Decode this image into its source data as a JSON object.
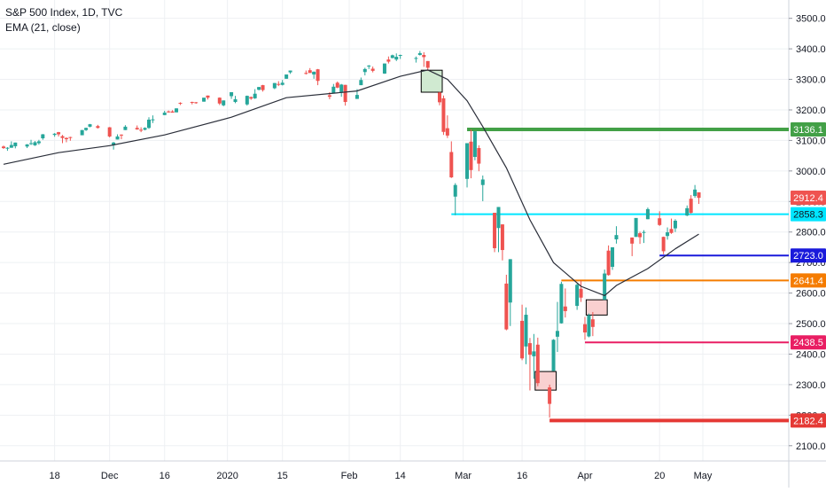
{
  "header": {
    "title": "S&P 500 Index, 1D, TVC",
    "indicator": "EMA (21, close)"
  },
  "colors": {
    "up": "#26a69a",
    "down": "#ef5350",
    "ema": "#2a2e39",
    "grid": "#eef0f3",
    "axis_text": "#131722"
  },
  "chart_data": {
    "type": "candlestick",
    "title": "S&P 500 Index, 1D, TVC",
    "indicator": "EMA (21, close)",
    "ylim": [
      2050,
      3560
    ],
    "y_ticks": [
      2100,
      2200,
      2300,
      2400,
      2500,
      2600,
      2700,
      2800,
      2900,
      3000,
      3100,
      3200,
      3300,
      3400,
      3500
    ],
    "y_tick_labels": [
      "2100.0",
      "2200.0",
      "2300.0",
      "2400.0",
      "2500.0",
      "2600.0",
      "2700.0",
      "2800.0",
      "2900.0",
      "3000.0",
      "3100.0",
      "3200.0",
      "3300.0",
      "3400.0",
      "3500.0"
    ],
    "x_labels": [
      {
        "date": "2019-11-18",
        "label": "18"
      },
      {
        "date": "2019-12-02",
        "label": "Dec"
      },
      {
        "date": "2019-12-16",
        "label": "16"
      },
      {
        "date": "2020-01-01",
        "label": "2020"
      },
      {
        "date": "2020-01-15",
        "label": "15"
      },
      {
        "date": "2020-02-01",
        "label": "Feb"
      },
      {
        "date": "2020-02-14",
        "label": "14"
      },
      {
        "date": "2020-03-01",
        "label": "Mar"
      },
      {
        "date": "2020-03-16",
        "label": "16"
      },
      {
        "date": "2020-04-01",
        "label": "Apr"
      },
      {
        "date": "2020-04-20",
        "label": "20"
      },
      {
        "date": "2020-05-01",
        "label": "May"
      }
    ],
    "x_start": "2019-11-05",
    "x_end": "2020-05-08",
    "candles": [
      [
        "2019-11-05",
        3080,
        3083,
        3072,
        3075
      ],
      [
        "2019-11-06",
        3075,
        3078,
        3066,
        3076
      ],
      [
        "2019-11-07",
        3076,
        3097,
        3076,
        3085
      ],
      [
        "2019-11-08",
        3081,
        3093,
        3074,
        3093
      ],
      [
        "2019-11-11",
        3080,
        3088,
        3075,
        3087
      ],
      [
        "2019-11-12",
        3090,
        3102,
        3085,
        3091
      ],
      [
        "2019-11-13",
        3084,
        3098,
        3082,
        3094
      ],
      [
        "2019-11-14",
        3091,
        3102,
        3086,
        3097
      ],
      [
        "2019-11-15",
        3107,
        3121,
        3102,
        3120
      ],
      [
        "2019-11-18",
        3118,
        3124,
        3112,
        3122
      ],
      [
        "2019-11-19",
        3127,
        3128,
        3113,
        3120
      ],
      [
        "2019-11-20",
        3114,
        3118,
        3091,
        3108
      ],
      [
        "2019-11-21",
        3108,
        3110,
        3094,
        3104
      ],
      [
        "2019-11-22",
        3111,
        3112,
        3099,
        3110
      ],
      [
        "2019-11-25",
        3117,
        3134,
        3117,
        3134
      ],
      [
        "2019-11-26",
        3134,
        3142,
        3131,
        3141
      ],
      [
        "2019-11-27",
        3145,
        3154,
        3143,
        3153
      ],
      [
        "2019-11-29",
        3147,
        3151,
        3139,
        3141
      ],
      [
        "2019-12-02",
        3143,
        3144,
        3110,
        3113
      ],
      [
        "2019-12-03",
        3084,
        3095,
        3070,
        3093
      ],
      [
        "2019-12-04",
        3103,
        3120,
        3103,
        3113
      ],
      [
        "2019-12-05",
        3119,
        3120,
        3104,
        3117
      ],
      [
        "2019-12-06",
        3134,
        3150,
        3134,
        3145
      ],
      [
        "2019-12-09",
        3141,
        3149,
        3135,
        3136
      ],
      [
        "2019-12-10",
        3135,
        3143,
        3127,
        3132
      ],
      [
        "2019-12-11",
        3135,
        3143,
        3133,
        3141
      ],
      [
        "2019-12-12",
        3141,
        3176,
        3138,
        3168
      ],
      [
        "2019-12-13",
        3166,
        3182,
        3157,
        3169
      ],
      [
        "2019-12-16",
        3183,
        3197,
        3183,
        3191
      ],
      [
        "2019-12-17",
        3195,
        3198,
        3191,
        3192
      ],
      [
        "2019-12-18",
        3195,
        3199,
        3191,
        3191
      ],
      [
        "2019-12-19",
        3192,
        3205,
        3192,
        3205
      ],
      [
        "2019-12-20",
        3223,
        3225,
        3216,
        3221
      ],
      [
        "2019-12-23",
        3226,
        3227,
        3218,
        3224
      ],
      [
        "2019-12-24",
        3225,
        3226,
        3220,
        3223
      ],
      [
        "2019-12-26",
        3227,
        3240,
        3227,
        3240
      ],
      [
        "2019-12-27",
        3247,
        3247,
        3234,
        3240
      ],
      [
        "2019-12-30",
        3240,
        3241,
        3216,
        3221
      ],
      [
        "2019-12-31",
        3215,
        3231,
        3212,
        3231
      ],
      [
        "2020-01-02",
        3245,
        3258,
        3236,
        3258
      ],
      [
        "2020-01-03",
        3226,
        3246,
        3222,
        3235
      ],
      [
        "2020-01-06",
        3218,
        3247,
        3214,
        3246
      ],
      [
        "2020-01-07",
        3242,
        3244,
        3233,
        3237
      ],
      [
        "2020-01-08",
        3238,
        3268,
        3236,
        3253
      ],
      [
        "2020-01-09",
        3266,
        3275,
        3264,
        3275
      ],
      [
        "2020-01-10",
        3281,
        3282,
        3260,
        3265
      ],
      [
        "2020-01-13",
        3271,
        3288,
        3268,
        3288
      ],
      [
        "2020-01-14",
        3285,
        3294,
        3278,
        3283
      ],
      [
        "2020-01-15",
        3282,
        3298,
        3280,
        3289
      ],
      [
        "2020-01-16",
        3302,
        3316,
        3302,
        3316
      ],
      [
        "2020-01-17",
        3323,
        3329,
        3318,
        3329
      ],
      [
        "2020-01-21",
        3321,
        3329,
        3316,
        3320
      ],
      [
        "2020-01-22",
        3330,
        3337,
        3321,
        3321
      ],
      [
        "2020-01-23",
        3316,
        3326,
        3302,
        3325
      ],
      [
        "2020-01-24",
        3333,
        3334,
        3281,
        3295
      ],
      [
        "2020-01-27",
        3248,
        3258,
        3235,
        3243
      ],
      [
        "2020-01-28",
        3255,
        3285,
        3255,
        3276
      ],
      [
        "2020-01-29",
        3289,
        3293,
        3271,
        3273
      ],
      [
        "2020-01-30",
        3256,
        3285,
        3243,
        3283
      ],
      [
        "2020-01-31",
        3282,
        3282,
        3214,
        3226
      ],
      [
        "2020-02-03",
        3236,
        3268,
        3236,
        3249
      ],
      [
        "2020-02-04",
        3281,
        3306,
        3281,
        3298
      ],
      [
        "2020-02-05",
        3324,
        3338,
        3313,
        3334
      ],
      [
        "2020-02-06",
        3344,
        3347,
        3334,
        3345
      ],
      [
        "2020-02-07",
        3335,
        3342,
        3323,
        3328
      ],
      [
        "2020-02-10",
        3319,
        3352,
        3318,
        3352
      ],
      [
        "2020-02-11",
        3365,
        3375,
        3352,
        3358
      ],
      [
        "2020-02-12",
        3370,
        3381,
        3369,
        3379
      ],
      [
        "2020-02-13",
        3365,
        3385,
        3360,
        3374
      ],
      [
        "2020-02-14",
        3379,
        3381,
        3367,
        3380
      ],
      [
        "2020-02-18",
        3370,
        3375,
        3355,
        3370
      ],
      [
        "2020-02-19",
        3380,
        3393,
        3378,
        3386
      ],
      [
        "2020-02-20",
        3380,
        3389,
        3341,
        3373
      ],
      [
        "2020-02-21",
        3360,
        3360,
        3328,
        3338
      ],
      [
        "2020-02-24",
        3257,
        3259,
        3215,
        3225
      ],
      [
        "2020-02-25",
        3238,
        3247,
        3118,
        3128
      ],
      [
        "2020-02-26",
        3140,
        3182,
        3108,
        3116
      ],
      [
        "2020-02-27",
        3062,
        3097,
        2977,
        2979
      ],
      [
        "2020-02-28",
        2916,
        2960,
        2855,
        2954
      ],
      [
        "2020-03-02",
        2974,
        3091,
        2946,
        3091
      ],
      [
        "2020-03-03",
        3096,
        3136,
        2976,
        3003
      ],
      [
        "2020-03-04",
        3046,
        3131,
        3035,
        3130
      ],
      [
        "2020-03-05",
        3075,
        3084,
        2999,
        3024
      ],
      [
        "2020-03-06",
        2954,
        2985,
        2901,
        2972
      ],
      [
        "2020-03-09",
        2863,
        2863,
        2734,
        2747
      ],
      [
        "2020-03-10",
        2813,
        2882,
        2734,
        2882
      ],
      [
        "2020-03-11",
        2825,
        2825,
        2707,
        2741
      ],
      [
        "2020-03-12",
        2631,
        2660,
        2478,
        2481
      ],
      [
        "2020-03-13",
        2569,
        2711,
        2492,
        2711
      ],
      [
        "2020-03-16",
        2509,
        2562,
        2380,
        2386
      ],
      [
        "2020-03-17",
        2425,
        2553,
        2367,
        2529
      ],
      [
        "2020-03-18",
        2436,
        2453,
        2281,
        2398
      ],
      [
        "2020-03-19",
        2393,
        2466,
        2319,
        2409
      ],
      [
        "2020-03-20",
        2431,
        2454,
        2295,
        2305
      ],
      [
        "2020-03-23",
        2291,
        2300,
        2192,
        2237
      ],
      [
        "2020-03-24",
        2345,
        2449,
        2345,
        2447
      ],
      [
        "2020-03-25",
        2457,
        2571,
        2407,
        2476
      ],
      [
        "2020-03-26",
        2501,
        2637,
        2500,
        2630
      ],
      [
        "2020-03-27",
        2556,
        2615,
        2520,
        2541
      ],
      [
        "2020-03-30",
        2558,
        2631,
        2545,
        2627
      ],
      [
        "2020-03-31",
        2614,
        2641,
        2571,
        2585
      ],
      [
        "2020-04-01",
        2498,
        2522,
        2447,
        2471
      ],
      [
        "2020-04-02",
        2458,
        2533,
        2455,
        2527
      ],
      [
        "2020-04-03",
        2514,
        2538,
        2459,
        2489
      ],
      [
        "2020-04-06",
        2578,
        2677,
        2578,
        2664
      ],
      [
        "2020-04-07",
        2739,
        2756,
        2657,
        2659
      ],
      [
        "2020-04-08",
        2686,
        2750,
        2676,
        2750
      ],
      [
        "2020-04-09",
        2776,
        2819,
        2762,
        2790
      ],
      [
        "2020-04-13",
        2782,
        2782,
        2721,
        2762
      ],
      [
        "2020-04-14",
        2784,
        2845,
        2784,
        2846
      ],
      [
        "2020-04-15",
        2796,
        2801,
        2761,
        2783
      ],
      [
        "2020-04-16",
        2799,
        2806,
        2764,
        2800
      ],
      [
        "2020-04-17",
        2842,
        2880,
        2842,
        2875
      ],
      [
        "2020-04-20",
        2845,
        2868,
        2820,
        2823
      ],
      [
        "2020-04-21",
        2784,
        2785,
        2727,
        2737
      ],
      [
        "2020-04-22",
        2787,
        2815,
        2775,
        2799
      ],
      [
        "2020-04-23",
        2810,
        2844,
        2794,
        2797
      ],
      [
        "2020-04-24",
        2812,
        2842,
        2800,
        2837
      ],
      [
        "2020-04-27",
        2854,
        2887,
        2852,
        2878
      ],
      [
        "2020-04-28",
        2909,
        2921,
        2860,
        2863
      ],
      [
        "2020-04-29",
        2918,
        2954,
        2912,
        2939
      ],
      [
        "2020-04-30",
        2930,
        2930,
        2892,
        2912
      ]
    ],
    "ema": [
      [
        "2019-11-05",
        3022
      ],
      [
        "2019-11-19",
        3060
      ],
      [
        "2019-12-02",
        3083
      ],
      [
        "2019-12-16",
        3118
      ],
      [
        "2020-01-02",
        3176
      ],
      [
        "2020-01-16",
        3240
      ],
      [
        "2020-02-03",
        3262
      ],
      [
        "2020-02-14",
        3310
      ],
      [
        "2020-02-21",
        3331
      ],
      [
        "2020-02-26",
        3300
      ],
      [
        "2020-03-02",
        3230
      ],
      [
        "2020-03-06",
        3145
      ],
      [
        "2020-03-12",
        3010
      ],
      [
        "2020-03-18",
        2840
      ],
      [
        "2020-03-24",
        2700
      ],
      [
        "2020-03-31",
        2622
      ],
      [
        "2020-04-06",
        2592
      ],
      [
        "2020-04-09",
        2625
      ],
      [
        "2020-04-17",
        2680
      ],
      [
        "2020-04-24",
        2745
      ],
      [
        "2020-04-30",
        2793
      ]
    ],
    "levels": [
      {
        "label": "3136.1",
        "value": 3136.1,
        "color": "#43a047",
        "from": "2020-03-02",
        "thick": true
      },
      {
        "label": "2912.4",
        "value": 2912.4,
        "color": "#ef5350",
        "marker": true
      },
      {
        "label": "2858.3",
        "value": 2858.3,
        "color": "#00e5ff",
        "from": "2020-02-27",
        "thick": false
      },
      {
        "label": "2723.0",
        "value": 2723.0,
        "color": "#1a1adb",
        "from": "2020-04-20",
        "thick": false
      },
      {
        "label": "2641.4",
        "value": 2641.4,
        "color": "#f57c00",
        "from": "2020-03-26",
        "thick": false
      },
      {
        "label": "2438.5",
        "value": 2438.5,
        "color": "#e91e63",
        "from": "2020-04-01",
        "thick": false
      },
      {
        "label": "2182.4",
        "value": 2182.4,
        "color": "#e53935",
        "from": "2020-03-23",
        "thick": true
      }
    ],
    "highlight_boxes": [
      {
        "name": "top-box",
        "from": "2020-02-20",
        "to": "2020-02-24",
        "ymin": 3258,
        "ymax": 3330,
        "fill": "#c8e6c9"
      },
      {
        "name": "bottom-box",
        "from": "2020-03-20",
        "to": "2020-03-24",
        "ymin": 2282,
        "ymax": 2343,
        "fill": "#f8c8c8"
      },
      {
        "name": "retest-box",
        "from": "2020-04-02",
        "to": "2020-04-06",
        "ymin": 2528,
        "ymax": 2578,
        "fill": "#f8c8c8"
      }
    ]
  }
}
